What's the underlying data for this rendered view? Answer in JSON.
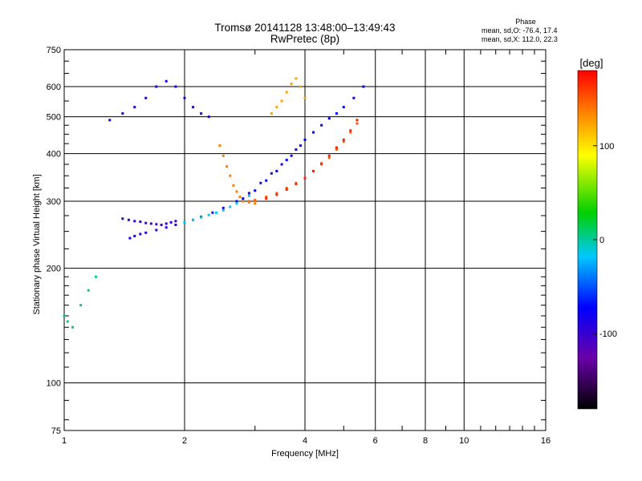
{
  "chart_data": {
    "type": "scatter",
    "title": "Tromsø 20141128 13:48:00–13:49:43",
    "subtitle": "RwPretec (8p)",
    "xlabel": "Frequency [MHz]",
    "ylabel": "Stationary phase Virtual Height [km]",
    "x_scale": "log",
    "y_scale": "log",
    "xlim": [
      1,
      16
    ],
    "ylim": [
      75,
      750
    ],
    "x_ticks": [
      1,
      2,
      4,
      6,
      8,
      10,
      16
    ],
    "x_tick_labels": [
      "1",
      "2",
      "4",
      "6",
      "8",
      "10",
      "16"
    ],
    "y_ticks": [
      75,
      100,
      200,
      300,
      400,
      500,
      600,
      750
    ],
    "y_tick_labels": [
      "75",
      "100",
      "200",
      "300",
      "400",
      "500",
      "600",
      "750"
    ],
    "grid": true,
    "colorbar": {
      "label": "[deg]",
      "range": [
        -180,
        180
      ],
      "ticks": [
        100,
        0,
        -100
      ],
      "tick_labels": [
        "100",
        "0",
        "-100"
      ]
    },
    "phase_stats": {
      "title": "Phase",
      "line_o": "mean, sd,O: -76.4, 17.4",
      "line_x": "mean, sd,X: 112.0, 22.3"
    },
    "series": [
      {
        "trace": "o-mode-low",
        "phase": -100,
        "x": [
          1.46,
          1.5,
          1.55,
          1.6,
          1.7,
          1.8,
          1.9,
          2.0,
          2.1,
          2.2,
          2.35,
          2.5,
          2.7,
          2.9,
          3.1,
          3.3,
          3.5,
          3.7,
          3.9
        ],
        "y": [
          240,
          243,
          246,
          248,
          252,
          256,
          260,
          264,
          268,
          273,
          280,
          288,
          300,
          315,
          335,
          355,
          375,
          395,
          420
        ]
      },
      {
        "trace": "o-mode-band",
        "phase": -110,
        "x": [
          1.4,
          1.45,
          1.5,
          1.55,
          1.6,
          1.65,
          1.7,
          1.75,
          1.8,
          1.85,
          1.9
        ],
        "y": [
          270,
          268,
          266,
          265,
          263,
          262,
          261,
          260,
          262,
          264,
          266
        ]
      },
      {
        "trace": "o-mode-cyan",
        "phase": -40,
        "x": [
          2.0,
          2.1,
          2.2,
          2.3,
          2.4,
          2.5,
          2.6,
          2.7,
          2.8,
          2.9
        ],
        "y": [
          264,
          268,
          272,
          276,
          280,
          284,
          290,
          296,
          302,
          310
        ]
      },
      {
        "trace": "o-mode-mid",
        "phase": -90,
        "x": [
          2.8,
          3.0,
          3.2,
          3.4,
          3.6,
          3.8,
          4.0,
          4.2,
          4.4,
          4.6,
          4.8,
          5.0,
          5.3,
          5.6
        ],
        "y": [
          305,
          320,
          340,
          360,
          385,
          410,
          435,
          455,
          475,
          495,
          510,
          530,
          560,
          600
        ]
      },
      {
        "trace": "x-mode-orange",
        "phase": 140,
        "x": [
          2.9,
          3.0,
          3.2,
          3.4,
          3.6,
          3.8,
          4.0,
          4.2,
          4.4,
          4.6,
          4.8,
          5.0,
          5.2,
          5.4
        ],
        "y": [
          300,
          302,
          308,
          315,
          325,
          335,
          345,
          360,
          375,
          390,
          410,
          430,
          455,
          480
        ]
      },
      {
        "trace": "x-mode-red",
        "phase": 165,
        "x": [
          3.2,
          3.4,
          3.6,
          3.8,
          4.0,
          4.2,
          4.4,
          4.6,
          4.8,
          5.0,
          5.2,
          5.4
        ],
        "y": [
          305,
          312,
          322,
          333,
          345,
          360,
          377,
          395,
          415,
          435,
          460,
          490
        ]
      },
      {
        "trace": "x-mode-hook",
        "phase": 125,
        "x": [
          2.45,
          2.5,
          2.55,
          2.6,
          2.65,
          2.7,
          2.75,
          2.8,
          2.9,
          3.0
        ],
        "y": [
          420,
          395,
          370,
          350,
          330,
          318,
          308,
          300,
          298,
          296
        ]
      },
      {
        "trace": "f2-upper",
        "phase": -105,
        "x": [
          1.3,
          1.4,
          1.5,
          1.6,
          1.7,
          1.8,
          1.9,
          2.0,
          2.1,
          2.2,
          2.3
        ],
        "y": [
          490,
          510,
          530,
          560,
          600,
          620,
          600,
          560,
          530,
          510,
          500
        ]
      },
      {
        "trace": "f2-upper-right",
        "phase": 110,
        "x": [
          3.3,
          3.4,
          3.5,
          3.6,
          3.7,
          3.8,
          3.9,
          4.0
        ],
        "y": [
          510,
          530,
          550,
          580,
          610,
          630,
          600,
          560
        ]
      },
      {
        "trace": "low-isolated",
        "phase": -20,
        "x": [
          1.0,
          1.02,
          1.05,
          1.1,
          1.15,
          1.2
        ],
        "y": [
          150,
          145,
          140,
          160,
          175,
          190
        ]
      }
    ]
  }
}
